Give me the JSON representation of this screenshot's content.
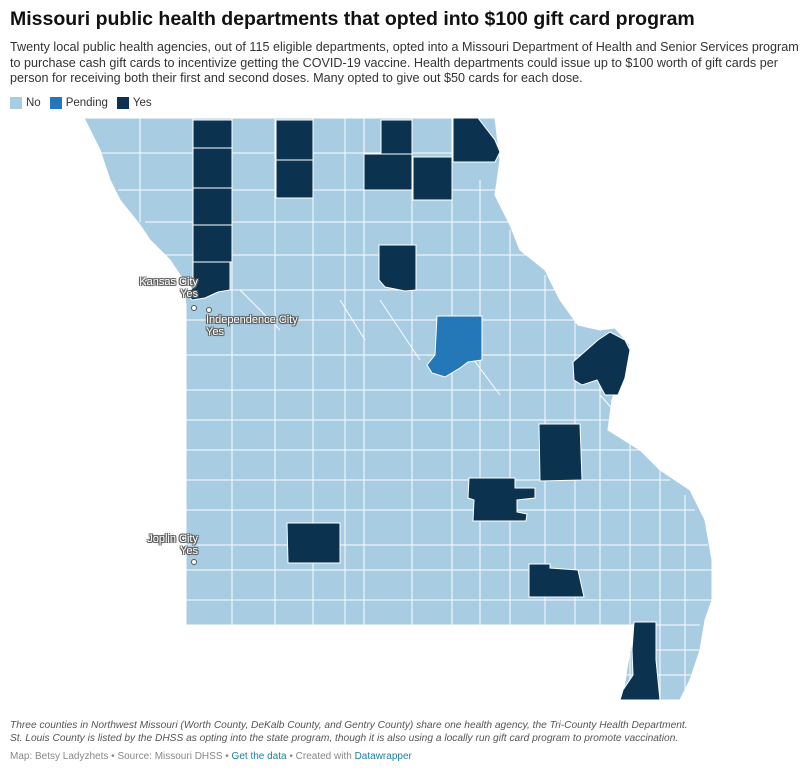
{
  "title": "Missouri public health departments that opted into $100 gift card program",
  "description": "Twenty local public health agencies, out of 115 eligible departments, opted into a Missouri Department of Health and Senior Services program to purchase cash gift cards to incentivize getting the COVID-19 vaccine. Health departments could issue up to $100 worth of gift cards per person for receiving both their first and second doses. Many opted to give out $50 cards for each dose.",
  "legend": [
    {
      "label": "No",
      "color": "#a8cce1"
    },
    {
      "label": "Pending",
      "color": "#2578b8"
    },
    {
      "label": "Yes",
      "color": "#0b3350"
    }
  ],
  "colors": {
    "no": "#a8cce1",
    "pending": "#2578b8",
    "yes": "#0b3350",
    "border": "#ffffff"
  },
  "cities": [
    {
      "name": "Kansas City",
      "status": "Yes"
    },
    {
      "name": "Independence City",
      "status": "Yes"
    },
    {
      "name": "Joplin City",
      "status": "Yes"
    }
  ],
  "notes": {
    "line1": "Three counties in Northwest Missouri (Worth County, DeKalb County, and Gentry County) share one health agency, the Tri-County Health Department.",
    "line2": "St. Louis County is listed by the DHSS as opting into the state program, though it is also using a locally run gift card program to promote vaccination."
  },
  "footer": {
    "credit": "Map: Betsy Ladyzhets",
    "source": "Source: Missouri DHSS",
    "get_data": "Get the data",
    "created_with": "Created with",
    "tool": "Datawrapper",
    "separator": " • "
  }
}
